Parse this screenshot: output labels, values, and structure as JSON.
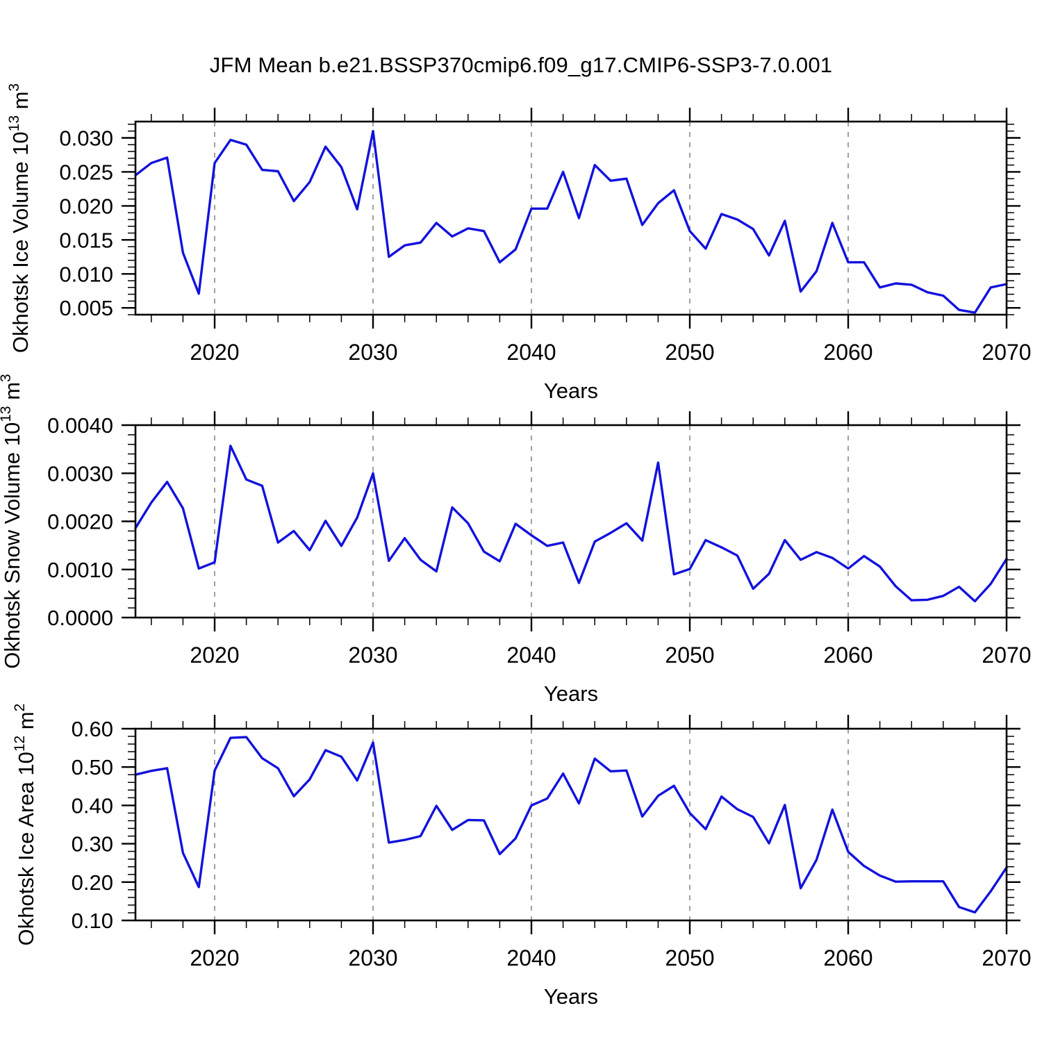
{
  "title": "JFM Mean b.e21.BSSP370cmip6.f09_g17.CMIP6-SSP3-7.0.001",
  "colors": {
    "line": "#1212dd",
    "grid": "#969696",
    "axis": "#000000"
  },
  "years": [
    2015,
    2016,
    2017,
    2018,
    2019,
    2020,
    2021,
    2022,
    2023,
    2024,
    2025,
    2026,
    2027,
    2028,
    2029,
    2030,
    2031,
    2032,
    2033,
    2034,
    2035,
    2036,
    2037,
    2038,
    2039,
    2040,
    2041,
    2042,
    2043,
    2044,
    2045,
    2046,
    2047,
    2048,
    2049,
    2050,
    2051,
    2052,
    2053,
    2054,
    2055,
    2056,
    2057,
    2058,
    2059,
    2060,
    2061,
    2062,
    2063,
    2064,
    2065,
    2066,
    2067,
    2068,
    2069,
    2070
  ],
  "x_axis": {
    "label": "Years",
    "range": [
      2015,
      2070
    ],
    "ticks": [
      2020,
      2030,
      2040,
      2050,
      2060,
      2070
    ],
    "minor_step": 2,
    "gridlines": [
      2020,
      2030,
      2040,
      2050,
      2060
    ]
  },
  "chart_data": [
    {
      "type": "line",
      "id": "ice-volume",
      "ylabel": "Okhotsk Ice Volume 10^13 m^3",
      "ylabel_parts": [
        {
          "t": "Okhotsk Ice Volume 10"
        },
        {
          "t": "13",
          "sup": true
        },
        {
          "t": " m"
        },
        {
          "t": "3",
          "sup": true
        }
      ],
      "ylim": [
        0.004,
        0.0324
      ],
      "yticks": [
        0.005,
        0.01,
        0.015,
        0.02,
        0.025,
        0.03
      ],
      "ytick_labels": [
        "0.005",
        "0.010",
        "0.015",
        "0.020",
        "0.025",
        "0.030"
      ],
      "yminor_step": 0.001,
      "values": [
        0.0245,
        0.0263,
        0.0271,
        0.0131,
        0.0071,
        0.0263,
        0.0297,
        0.029,
        0.0253,
        0.0251,
        0.0207,
        0.0235,
        0.0287,
        0.0257,
        0.0195,
        0.031,
        0.0125,
        0.0142,
        0.0146,
        0.0175,
        0.0155,
        0.0167,
        0.0163,
        0.0117,
        0.0136,
        0.0196,
        0.0196,
        0.025,
        0.0182,
        0.026,
        0.0237,
        0.024,
        0.0172,
        0.0204,
        0.0223,
        0.0163,
        0.0137,
        0.0188,
        0.018,
        0.0166,
        0.0127,
        0.0178,
        0.0074,
        0.0104,
        0.0175,
        0.0117,
        0.0117,
        0.008,
        0.0086,
        0.0084,
        0.0073,
        0.0068,
        0.0047,
        0.0043,
        0.008,
        0.0085
      ]
    },
    {
      "type": "line",
      "id": "snow-volume",
      "ylabel": "Okhotsk Snow Volume 10^13 m^3",
      "ylabel_parts": [
        {
          "t": "Okhotsk Snow Volume 10"
        },
        {
          "t": "13",
          "sup": true
        },
        {
          "t": " m"
        },
        {
          "t": "3",
          "sup": true
        }
      ],
      "ylim": [
        0.0,
        0.004
      ],
      "yticks": [
        0.0,
        0.001,
        0.002,
        0.003,
        0.004
      ],
      "ytick_labels": [
        "0.0000",
        "0.0010",
        "0.0020",
        "0.0030",
        "0.0040"
      ],
      "yminor_step": 0.0002,
      "values": [
        0.00186,
        0.00239,
        0.00282,
        0.00227,
        0.00102,
        0.00115,
        0.00357,
        0.00287,
        0.00274,
        0.00156,
        0.0018,
        0.0014,
        0.00201,
        0.00149,
        0.00208,
        0.003,
        0.00118,
        0.00165,
        0.0012,
        0.00096,
        0.00229,
        0.00196,
        0.00137,
        0.00117,
        0.00195,
        0.00171,
        0.00149,
        0.00156,
        0.00072,
        0.00158,
        0.00176,
        0.00196,
        0.0016,
        0.00322,
        0.0009,
        0.00101,
        0.00161,
        0.00146,
        0.00129,
        0.0006,
        0.00091,
        0.00161,
        0.0012,
        0.00136,
        0.00124,
        0.00102,
        0.00128,
        0.00106,
        0.00065,
        0.00036,
        0.00037,
        0.00045,
        0.00064,
        0.00034,
        0.0007,
        0.00122
      ]
    },
    {
      "type": "line",
      "id": "ice-area",
      "ylabel": "Okhotsk Ice Area 10^12 m^2",
      "ylabel_parts": [
        {
          "t": "Okhotsk Ice Area 10"
        },
        {
          "t": "12",
          "sup": true
        },
        {
          "t": " m"
        },
        {
          "t": "2",
          "sup": true
        }
      ],
      "ylim": [
        0.1,
        0.6
      ],
      "yticks": [
        0.1,
        0.2,
        0.3,
        0.4,
        0.5,
        0.6
      ],
      "ytick_labels": [
        "0.10",
        "0.20",
        "0.30",
        "0.40",
        "0.50",
        "0.60"
      ],
      "yminor_step": 0.02,
      "values": [
        0.48,
        0.49,
        0.497,
        0.276,
        0.187,
        0.491,
        0.576,
        0.578,
        0.523,
        0.497,
        0.424,
        0.468,
        0.544,
        0.527,
        0.465,
        0.564,
        0.303,
        0.31,
        0.32,
        0.399,
        0.336,
        0.362,
        0.361,
        0.273,
        0.314,
        0.4,
        0.418,
        0.483,
        0.405,
        0.522,
        0.489,
        0.491,
        0.371,
        0.425,
        0.451,
        0.38,
        0.338,
        0.423,
        0.39,
        0.37,
        0.301,
        0.401,
        0.184,
        0.258,
        0.389,
        0.279,
        0.242,
        0.217,
        0.201,
        0.202,
        0.202,
        0.202,
        0.135,
        0.121,
        0.176,
        0.238
      ]
    }
  ]
}
